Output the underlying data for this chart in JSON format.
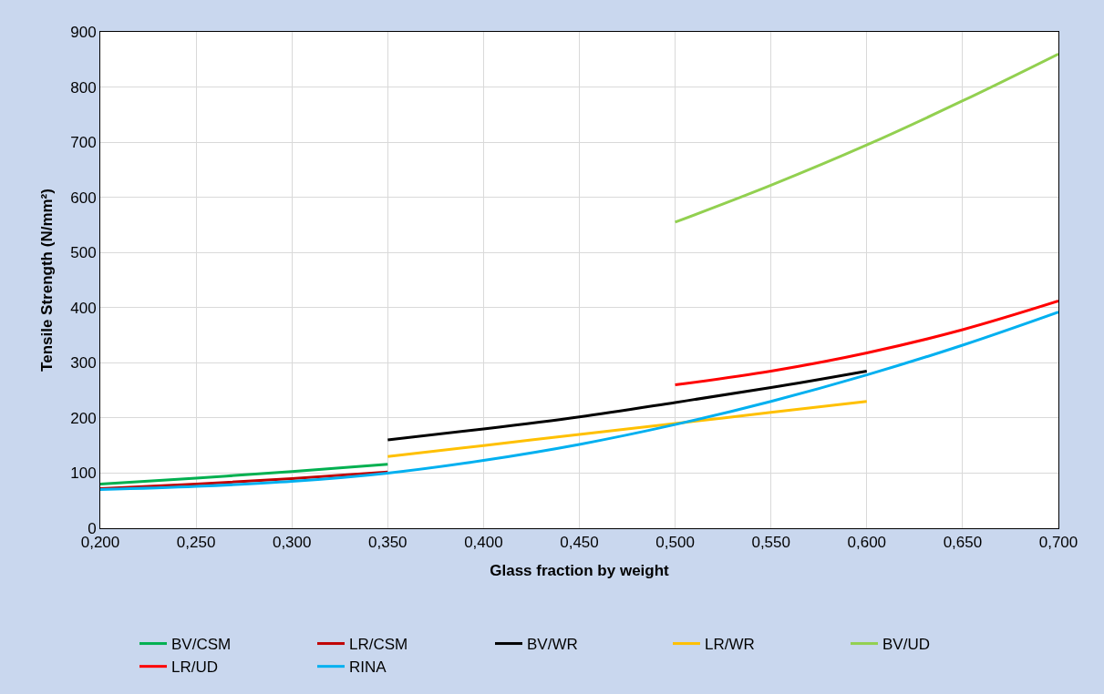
{
  "chart_data": {
    "type": "line",
    "xlabel": "Glass fraction by weight",
    "ylabel": "Tensile Strength (N/mm²)",
    "xlim": [
      0.2,
      0.7
    ],
    "xticks": [
      {
        "value": 0.2,
        "label": "0,200"
      },
      {
        "value": 0.25,
        "label": "0,250"
      },
      {
        "value": 0.3,
        "label": "0,300"
      },
      {
        "value": 0.35,
        "label": "0,350"
      },
      {
        "value": 0.4,
        "label": "0,400"
      },
      {
        "value": 0.45,
        "label": "0,450"
      },
      {
        "value": 0.5,
        "label": "0,500"
      },
      {
        "value": 0.55,
        "label": "0,550"
      },
      {
        "value": 0.6,
        "label": "0,600"
      },
      {
        "value": 0.65,
        "label": "0,650"
      },
      {
        "value": 0.7,
        "label": "0,700"
      }
    ],
    "ylim": [
      0,
      900
    ],
    "yticks": [
      0,
      100,
      200,
      300,
      400,
      500,
      600,
      700,
      800,
      900
    ],
    "grid": true,
    "legend": "bottom",
    "marker": "none",
    "line_style": "solid",
    "series": [
      {
        "name": "BV/CSM",
        "color": "#00b050",
        "x": [
          0.2,
          0.25,
          0.3,
          0.35
        ],
        "values": [
          80,
          91,
          103,
          116
        ]
      },
      {
        "name": "LR/CSM",
        "color": "#c00000",
        "x": [
          0.2,
          0.25,
          0.3,
          0.35
        ],
        "values": [
          72,
          80,
          90,
          102
        ]
      },
      {
        "name": "BV/WR",
        "color": "#000000",
        "x": [
          0.35,
          0.4,
          0.45,
          0.5,
          0.55,
          0.6
        ],
        "values": [
          160,
          180,
          202,
          228,
          255,
          285
        ]
      },
      {
        "name": "LR/WR",
        "color": "#ffc000",
        "x": [
          0.35,
          0.4,
          0.45,
          0.5,
          0.55,
          0.6
        ],
        "values": [
          130,
          150,
          170,
          190,
          210,
          230
        ]
      },
      {
        "name": "BV/UD",
        "color": "#92d050",
        "x": [
          0.5,
          0.55,
          0.6,
          0.65,
          0.7
        ],
        "values": [
          555,
          622,
          695,
          775,
          860
        ]
      },
      {
        "name": "LR/UD",
        "color": "#ff0000",
        "x": [
          0.5,
          0.55,
          0.6,
          0.65,
          0.7
        ],
        "values": [
          260,
          285,
          318,
          360,
          412
        ]
      },
      {
        "name": "RINA",
        "color": "#00b0f0",
        "x": [
          0.2,
          0.25,
          0.3,
          0.35,
          0.4,
          0.45,
          0.5,
          0.55,
          0.6,
          0.65,
          0.7
        ],
        "values": [
          70,
          76,
          85,
          100,
          123,
          152,
          188,
          230,
          278,
          332,
          392
        ]
      }
    ]
  }
}
